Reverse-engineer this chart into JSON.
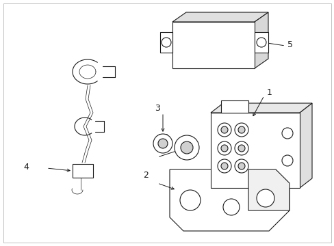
{
  "background_color": "#ffffff",
  "line_color": "#1a1a1a",
  "fig_width": 4.89,
  "fig_height": 3.6,
  "dpi": 100,
  "border_color": "#cccccc"
}
